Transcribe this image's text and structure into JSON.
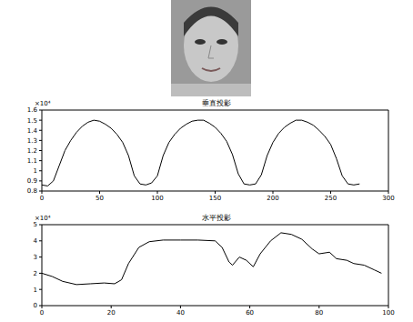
{
  "chart_data": [
    {
      "type": "line",
      "title": "垂直投影",
      "annotation": "×10⁴",
      "x": [
        0,
        5,
        10,
        15,
        20,
        25,
        30,
        35,
        40,
        45,
        50,
        55,
        60,
        65,
        70,
        75,
        80,
        85,
        90,
        95,
        100,
        105,
        110,
        115,
        120,
        125,
        130,
        135,
        140,
        145,
        150,
        155,
        160,
        165,
        170,
        175,
        180,
        185,
        190,
        195,
        200,
        205,
        210,
        215,
        220,
        225,
        230,
        235,
        240,
        245,
        250,
        255,
        260,
        265,
        270,
        275
      ],
      "values": [
        0.86,
        0.85,
        0.9,
        1.05,
        1.2,
        1.3,
        1.38,
        1.44,
        1.48,
        1.5,
        1.49,
        1.46,
        1.42,
        1.36,
        1.28,
        1.15,
        0.95,
        0.87,
        0.86,
        0.88,
        0.95,
        1.15,
        1.28,
        1.36,
        1.42,
        1.46,
        1.49,
        1.5,
        1.5,
        1.47,
        1.43,
        1.37,
        1.29,
        1.16,
        0.97,
        0.87,
        0.86,
        0.87,
        0.96,
        1.15,
        1.28,
        1.37,
        1.43,
        1.47,
        1.5,
        1.5,
        1.48,
        1.45,
        1.4,
        1.34,
        1.26,
        1.12,
        0.95,
        0.87,
        0.86,
        0.87
      ],
      "color": "#000000",
      "xlim": [
        0,
        300
      ],
      "xticks": [
        0,
        50,
        100,
        150,
        200,
        250,
        300
      ],
      "ylim": [
        0.8,
        1.6
      ],
      "yticks": [
        0.8,
        0.9,
        1,
        1.1,
        1.2,
        1.3,
        1.4,
        1.5,
        1.6
      ]
    },
    {
      "type": "line",
      "title": "水平投影",
      "annotation": "×10⁴",
      "x": [
        0,
        3,
        6,
        10,
        14,
        18,
        21,
        23,
        25,
        28,
        31,
        35,
        40,
        45,
        50,
        52,
        54,
        55,
        57,
        59,
        61,
        63,
        66,
        69,
        72,
        75,
        78,
        80,
        83,
        85,
        88,
        90,
        93,
        96,
        98
      ],
      "values": [
        2.0,
        1.8,
        1.5,
        1.3,
        1.35,
        1.4,
        1.35,
        1.6,
        2.6,
        3.6,
        3.95,
        4.05,
        4.05,
        4.05,
        4.0,
        3.6,
        2.7,
        2.5,
        3.0,
        2.8,
        2.4,
        3.2,
        4.0,
        4.5,
        4.4,
        4.1,
        3.5,
        3.2,
        3.3,
        2.9,
        2.8,
        2.6,
        2.5,
        2.2,
        2.0
      ],
      "color": "#000000",
      "xlim": [
        0,
        100
      ],
      "xticks": [
        0,
        20,
        40,
        60,
        80,
        100
      ],
      "ylim": [
        0,
        5
      ],
      "yticks": [
        0,
        1,
        2,
        3,
        4,
        5
      ]
    }
  ]
}
